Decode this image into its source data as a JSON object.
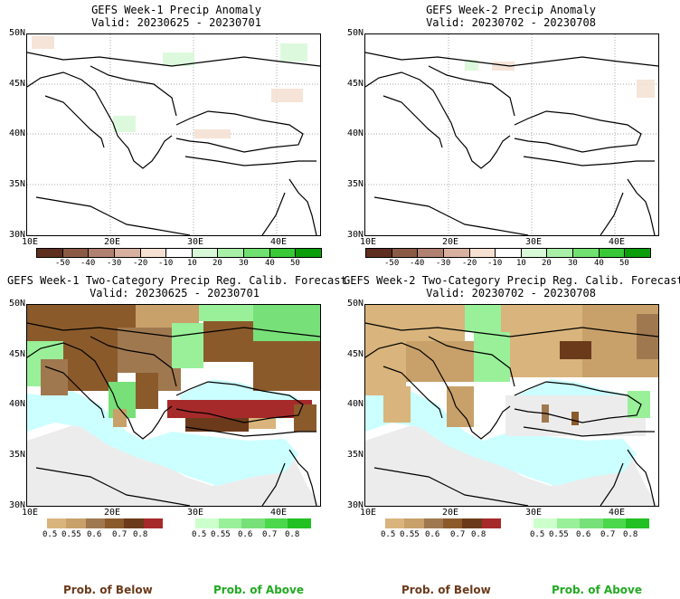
{
  "panels": [
    {
      "title_line1": "GEFS Week-1 Precip Anomaly",
      "title_line2": "Valid: 20230625 - 20230701"
    },
    {
      "title_line1": "GEFS Week-2 Precip Anomaly",
      "title_line2": "Valid: 20230702 - 20230708"
    },
    {
      "title_line1": "GEFS Week-1 Two-Category Precip Reg. Calib. Forecast",
      "title_line2": "Valid: 20230625 - 20230701"
    },
    {
      "title_line1": "GEFS Week-2 Two-Category Precip Reg. Calib. Forecast",
      "title_line2": "Valid: 20230702 - 20230708"
    }
  ],
  "lat_labels": [
    "50N",
    "45N",
    "40N",
    "35N",
    "30N"
  ],
  "lon_labels": [
    "10E",
    "20E",
    "30E",
    "40E"
  ],
  "anomaly_colorbar": {
    "labels": [
      "-50",
      "-40",
      "-30",
      "-20",
      "-10",
      "10",
      "20",
      "30",
      "40",
      "50"
    ],
    "colors": [
      "#5e2e1e",
      "#8b5a44",
      "#b08070",
      "#d8b0a0",
      "#f5e0d2",
      "#ffffff",
      "#d8f8d8",
      "#a8f0a8",
      "#70e070",
      "#38c838",
      "#0a9e0a"
    ]
  },
  "prob_below_colorbar": {
    "labels": [
      "0.5",
      "0.55",
      "0.6",
      "0.7",
      "0.8"
    ],
    "colors": [
      "#d9b47c",
      "#c8a06a",
      "#a07850",
      "#8b5a2b",
      "#6b3a1a",
      "#a62a2a"
    ]
  },
  "prob_above_colorbar": {
    "labels": [
      "0.5",
      "0.55",
      "0.6",
      "0.7",
      "0.8"
    ],
    "colors": [
      "#ccffcc",
      "#99f099",
      "#78e078",
      "#4cd84c",
      "#22c022"
    ]
  },
  "footer": {
    "below": "Prob. of Below",
    "above": "Prob. of Above"
  },
  "colors": {
    "sea": "#ccffff",
    "no_data": "#ececec",
    "below_text": "#6b3a1a",
    "above_text": "#22aa22"
  }
}
